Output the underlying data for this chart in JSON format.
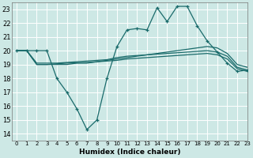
{
  "xlabel": "Humidex (Indice chaleur)",
  "xlim": [
    -0.5,
    23
  ],
  "ylim": [
    13.5,
    23.5
  ],
  "yticks": [
    14,
    15,
    16,
    17,
    18,
    19,
    20,
    21,
    22,
    23
  ],
  "xticks": [
    0,
    1,
    2,
    3,
    4,
    5,
    6,
    7,
    8,
    9,
    10,
    11,
    12,
    13,
    14,
    15,
    16,
    17,
    18,
    19,
    20,
    21,
    22,
    23
  ],
  "bg_color": "#cde8e5",
  "grid_color": "#ffffff",
  "line_color": "#1a6b6b",
  "line1_x": [
    0,
    1,
    2,
    3,
    4,
    5,
    6,
    7,
    8,
    9,
    10,
    11,
    12,
    13,
    14,
    15,
    16,
    17,
    18,
    19,
    20,
    21,
    22,
    23
  ],
  "line1_y": [
    20.0,
    20.0,
    20.0,
    20.0,
    18.0,
    17.0,
    15.8,
    14.3,
    15.0,
    18.0,
    20.3,
    21.5,
    21.6,
    21.5,
    23.1,
    22.1,
    23.2,
    23.2,
    21.8,
    20.7,
    19.9,
    19.1,
    18.5,
    18.6
  ],
  "line2_x": [
    0,
    1,
    2,
    3,
    4,
    5,
    6,
    7,
    8,
    9,
    10,
    11,
    12,
    13,
    14,
    15,
    16,
    17,
    18,
    19,
    20,
    21,
    22,
    23
  ],
  "line2_y": [
    20.0,
    20.0,
    19.0,
    19.0,
    19.0,
    19.0,
    19.1,
    19.1,
    19.2,
    19.3,
    19.4,
    19.5,
    19.6,
    19.7,
    19.8,
    19.9,
    20.0,
    20.1,
    20.2,
    20.3,
    20.2,
    19.8,
    19.0,
    18.8
  ],
  "line3_x": [
    0,
    1,
    2,
    3,
    4,
    5,
    6,
    7,
    8,
    9,
    10,
    11,
    12,
    13,
    14,
    15,
    16,
    17,
    18,
    19,
    20,
    21,
    22,
    23
  ],
  "line3_y": [
    20.0,
    20.0,
    19.1,
    19.1,
    19.1,
    19.15,
    19.2,
    19.25,
    19.3,
    19.35,
    19.5,
    19.6,
    19.65,
    19.7,
    19.75,
    19.8,
    19.85,
    19.9,
    19.95,
    20.0,
    19.9,
    19.6,
    18.8,
    18.6
  ],
  "line4_x": [
    0,
    1,
    2,
    3,
    4,
    5,
    6,
    7,
    8,
    9,
    10,
    11,
    12,
    13,
    14,
    15,
    16,
    17,
    18,
    19,
    20,
    21,
    22,
    23
  ],
  "line4_y": [
    20.0,
    20.0,
    19.0,
    19.0,
    19.05,
    19.1,
    19.12,
    19.15,
    19.2,
    19.25,
    19.3,
    19.4,
    19.45,
    19.5,
    19.55,
    19.6,
    19.65,
    19.7,
    19.75,
    19.8,
    19.7,
    19.4,
    18.7,
    18.5
  ]
}
